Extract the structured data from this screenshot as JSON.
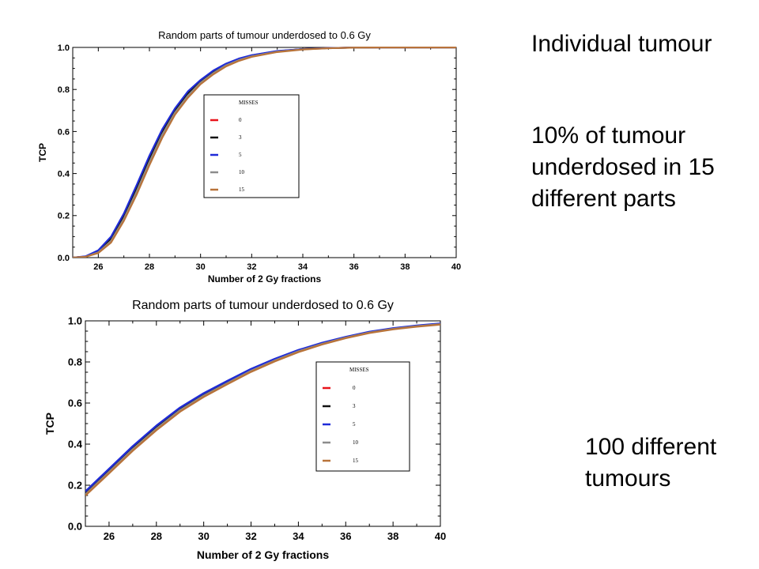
{
  "slide": {
    "note_individual": "Individual tumour",
    "note_underdosed": "10% of tumour underdosed  in 15 different parts",
    "note_hundred": "100 different tumours"
  },
  "legend_colors": {
    "0": "#e8141b",
    "3": "#111111",
    "5": "#1f2bd8",
    "10": "#8c8c8c",
    "15": "#b8733a"
  },
  "chart_data": [
    {
      "type": "line",
      "title": "Random parts of tumour underdosed to 0.6 Gy",
      "xlabel": "Number of 2 Gy fractions",
      "ylabel": "TCP",
      "xlim": [
        25,
        40
      ],
      "ylim": [
        0,
        1
      ],
      "xticks": [
        "26",
        "28",
        "30",
        "32",
        "34",
        "36",
        "38",
        "40"
      ],
      "yticks": [
        "0.0",
        "0.2",
        "0.4",
        "0.6",
        "0.8",
        "1.0"
      ],
      "grid": false,
      "legend_title": "MISSES",
      "legend_position": "center",
      "x": [
        25,
        25.5,
        26,
        26.5,
        27,
        27.5,
        28,
        28.5,
        29,
        29.5,
        30,
        30.5,
        31,
        31.5,
        32,
        33,
        34,
        35,
        36,
        37,
        38,
        39,
        40
      ],
      "series": [
        {
          "name": "0",
          "color": "#e8141b",
          "values": [
            0.0,
            0.005,
            0.03,
            0.09,
            0.2,
            0.33,
            0.47,
            0.6,
            0.7,
            0.78,
            0.84,
            0.885,
            0.92,
            0.945,
            0.962,
            0.982,
            0.992,
            0.997,
            0.999,
            1.0,
            1.0,
            1.0,
            1.0
          ]
        },
        {
          "name": "3",
          "color": "#111111",
          "values": [
            0.0,
            0.005,
            0.03,
            0.09,
            0.2,
            0.33,
            0.47,
            0.6,
            0.7,
            0.78,
            0.84,
            0.885,
            0.92,
            0.945,
            0.962,
            0.982,
            0.992,
            0.997,
            0.999,
            1.0,
            1.0,
            1.0,
            1.0
          ]
        },
        {
          "name": "5",
          "color": "#1f2bd8",
          "values": [
            0.0,
            0.006,
            0.035,
            0.1,
            0.21,
            0.345,
            0.485,
            0.61,
            0.71,
            0.79,
            0.845,
            0.89,
            0.923,
            0.947,
            0.963,
            0.983,
            0.992,
            0.997,
            0.999,
            1.0,
            1.0,
            1.0,
            1.0
          ]
        },
        {
          "name": "10",
          "color": "#8c8c8c",
          "values": [
            0.0,
            0.004,
            0.025,
            0.08,
            0.185,
            0.315,
            0.455,
            0.585,
            0.69,
            0.77,
            0.832,
            0.878,
            0.915,
            0.94,
            0.958,
            0.98,
            0.991,
            0.996,
            0.999,
            1.0,
            1.0,
            1.0,
            1.0
          ]
        },
        {
          "name": "15",
          "color": "#b8733a",
          "values": [
            0.0,
            0.004,
            0.022,
            0.072,
            0.175,
            0.3,
            0.44,
            0.57,
            0.68,
            0.76,
            0.825,
            0.872,
            0.91,
            0.936,
            0.955,
            0.978,
            0.99,
            0.996,
            0.999,
            1.0,
            1.0,
            1.0,
            1.0
          ]
        }
      ]
    },
    {
      "type": "line",
      "title": "Random parts of tumour underdosed to 0.6 Gy",
      "xlabel": "Number of 2 Gy fractions",
      "ylabel": "TCP",
      "xlim": [
        25,
        40
      ],
      "ylim": [
        0,
        1
      ],
      "xticks": [
        "26",
        "28",
        "30",
        "32",
        "34",
        "36",
        "38",
        "40"
      ],
      "yticks": [
        "0.0",
        "0.2",
        "0.4",
        "0.6",
        "0.8",
        "1.0"
      ],
      "grid": false,
      "legend_title": "MISSES",
      "legend_position": "center-right",
      "x": [
        25,
        26,
        27,
        28,
        29,
        30,
        31,
        32,
        33,
        34,
        35,
        36,
        37,
        38,
        39,
        40
      ],
      "series": [
        {
          "name": "0",
          "color": "#e8141b",
          "values": [
            0.16,
            0.27,
            0.38,
            0.48,
            0.57,
            0.64,
            0.7,
            0.76,
            0.81,
            0.855,
            0.89,
            0.92,
            0.945,
            0.962,
            0.975,
            0.985
          ]
        },
        {
          "name": "3",
          "color": "#111111",
          "values": [
            0.16,
            0.27,
            0.38,
            0.48,
            0.57,
            0.64,
            0.7,
            0.76,
            0.81,
            0.855,
            0.89,
            0.92,
            0.945,
            0.962,
            0.975,
            0.985
          ]
        },
        {
          "name": "5",
          "color": "#1f2bd8",
          "values": [
            0.17,
            0.28,
            0.39,
            0.49,
            0.578,
            0.648,
            0.708,
            0.766,
            0.815,
            0.858,
            0.893,
            0.922,
            0.947,
            0.964,
            0.977,
            0.987
          ]
        },
        {
          "name": "10",
          "color": "#8c8c8c",
          "values": [
            0.155,
            0.265,
            0.375,
            0.475,
            0.565,
            0.636,
            0.697,
            0.757,
            0.807,
            0.852,
            0.888,
            0.918,
            0.943,
            0.961,
            0.974,
            0.984
          ]
        },
        {
          "name": "15",
          "color": "#b8733a",
          "values": [
            0.15,
            0.258,
            0.368,
            0.468,
            0.558,
            0.63,
            0.692,
            0.752,
            0.803,
            0.848,
            0.885,
            0.916,
            0.941,
            0.959,
            0.972,
            0.982
          ]
        }
      ]
    }
  ]
}
